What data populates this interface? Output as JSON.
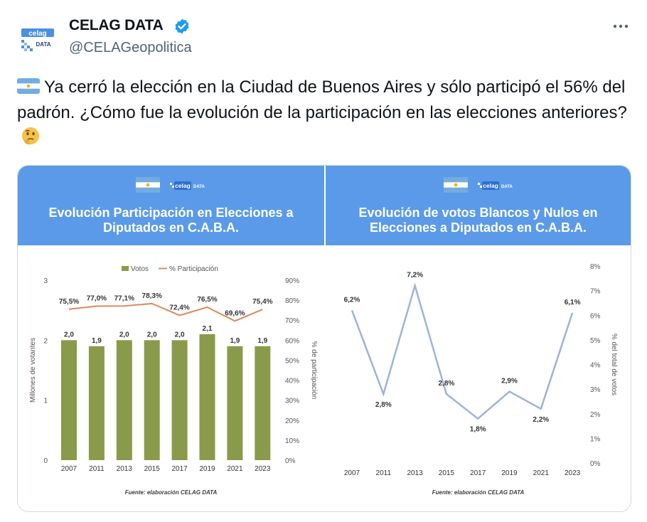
{
  "author": {
    "name": "CELAG DATA",
    "handle": "@CELAGeopolitica",
    "avatar_text_top": "celag",
    "avatar_text_bottom": "DATA"
  },
  "icons": {
    "verified": "verified-badge-icon",
    "more": "more-options-icon",
    "flag": "argentina-flag-icon",
    "emoji": "thinking-face-icon"
  },
  "tweet": {
    "text": "Ya cerró la elección en la Ciudad de Buenos Aires y sólo participó el 56% del padrón. ¿Cómo fue la evolución de la participación en las elecciones anteriores?"
  },
  "colors": {
    "header_blue": "#5b9ae8",
    "bar_olive": "#8a9a4b",
    "line_orange": "#e0875a",
    "line_blue": "#9bb3dc"
  },
  "left_panel": {
    "brand": "celag",
    "brand_sub": "DATA",
    "title_line1": "Evolución Participación en Elecciones a",
    "title_line2": "Diputados en C.A.B.A.",
    "legend_bars": "Votos",
    "legend_line": "% Participación",
    "ylabel_left": "Millones de votantes",
    "ylabel_right": "% de participación",
    "source": "Fuente: elaboración CELAG DATA"
  },
  "right_panel": {
    "brand": "celag",
    "brand_sub": "DATA",
    "title_line1": "Evolución de votos Blancos y Nulos en",
    "title_line2": "Elecciones a Diputados en C.A.B.A.",
    "ylabel_right": "% del total de votos",
    "source": "Fuente: elaboración CELAG DATA"
  },
  "chart_data": [
    {
      "type": "bar",
      "title": "Evolución Participación en Elecciones a Diputados en C.A.B.A.",
      "categories": [
        "2007",
        "2011",
        "2013",
        "2015",
        "2017",
        "2019",
        "2021",
        "2023"
      ],
      "series": [
        {
          "name": "Votos",
          "type": "bar",
          "axis": "left",
          "values": [
            2.0,
            1.9,
            2.0,
            2.0,
            2.0,
            2.1,
            1.9,
            1.9
          ],
          "labels": [
            "2,0",
            "1,9",
            "2,0",
            "2,0",
            "2,0",
            "2,1",
            "1,9",
            "1,9"
          ]
        },
        {
          "name": "% Participación",
          "type": "line",
          "axis": "right",
          "values": [
            75.5,
            77.0,
            77.1,
            78.3,
            72.4,
            76.5,
            69.6,
            75.4
          ],
          "labels": [
            "75,5%",
            "77,0%",
            "77,1%",
            "78,3%",
            "72,4%",
            "76,5%",
            "69,6%",
            "75,4%"
          ]
        }
      ],
      "ylabel": "Millones de votantes",
      "y2label": "% de participación",
      "ylim": [
        0,
        3
      ],
      "y2lim": [
        0,
        90
      ],
      "yticks": [
        "0",
        "1",
        "2",
        "3"
      ],
      "y2ticks": [
        "0%",
        "10%",
        "20%",
        "30%",
        "40%",
        "50%",
        "60%",
        "70%",
        "80%",
        "90%"
      ],
      "legend": "top-center",
      "grid": false
    },
    {
      "type": "line",
      "title": "Evolución de votos Blancos y Nulos en Elecciones a Diputados en C.A.B.A.",
      "categories": [
        "2007",
        "2011",
        "2013",
        "2015",
        "2017",
        "2019",
        "2021",
        "2023"
      ],
      "series": [
        {
          "values": [
            6.2,
            2.8,
            7.2,
            2.8,
            1.8,
            2.9,
            2.2,
            6.1
          ],
          "labels": [
            "6,2%",
            "2,8%",
            "7,2%",
            "2,8%",
            "1,8%",
            "2,9%",
            "2,2%",
            "6,1%"
          ]
        }
      ],
      "y2label": "% del total de votos",
      "y2lim": [
        0,
        8
      ],
      "y2ticks": [
        "0%",
        "1%",
        "2%",
        "3%",
        "4%",
        "5%",
        "6%",
        "7%",
        "8%"
      ],
      "grid": false
    }
  ]
}
